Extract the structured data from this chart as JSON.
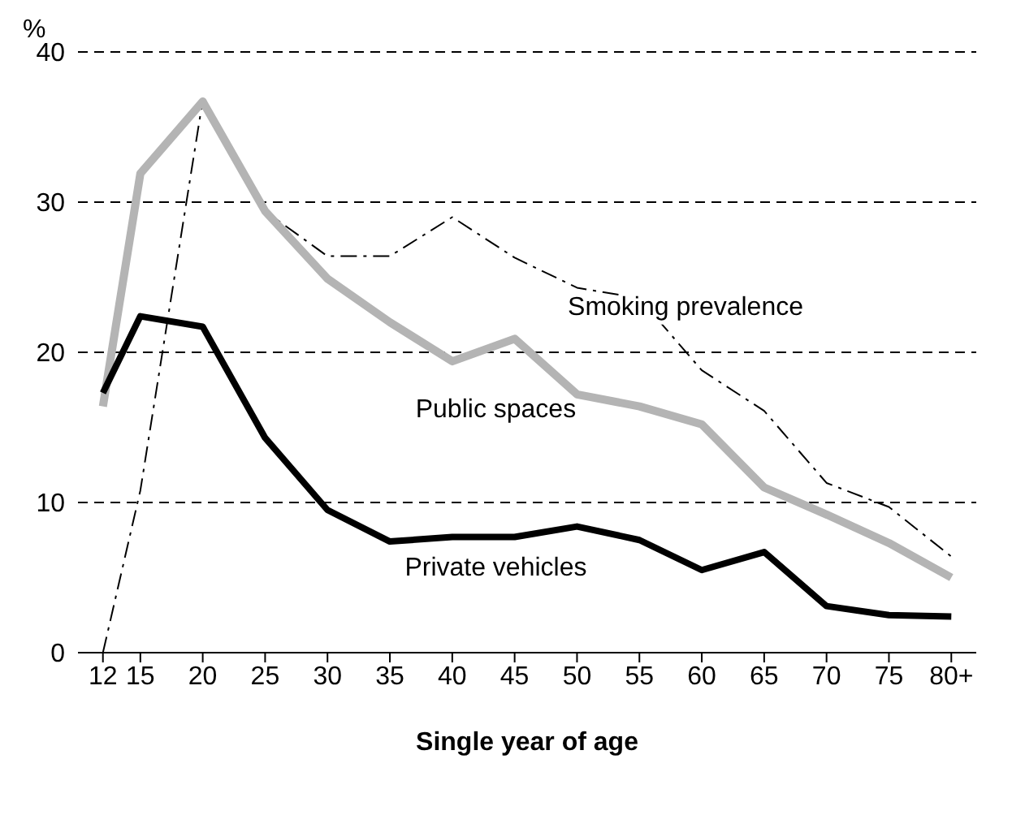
{
  "chart_data": {
    "type": "line",
    "xlabel": "Single year of age",
    "ylabel": "%",
    "x": [
      12,
      15,
      20,
      25,
      30,
      35,
      40,
      45,
      50,
      55,
      60,
      65,
      70,
      75,
      80
    ],
    "xlim": [
      10,
      82
    ],
    "xticks": [
      12,
      15,
      20,
      25,
      30,
      35,
      40,
      45,
      50,
      55,
      60,
      65,
      70,
      75,
      {
        "value": 80,
        "label": "80+"
      }
    ],
    "ylim": [
      0,
      40
    ],
    "yticks": [
      0,
      10,
      20,
      30,
      40
    ],
    "grid": "y",
    "marker": "none",
    "series": [
      {
        "name": "Smoking prevalence",
        "color": "#000000",
        "line_style": "dashed",
        "values": [
          0,
          10.8,
          36.8,
          29.4,
          26.4,
          26.4,
          29,
          26.3,
          24.3,
          23.6,
          18.8,
          16.1,
          11.3,
          9.7,
          6.4
        ]
      },
      {
        "name": "Public spaces",
        "color": "#b4b4b4",
        "values": [
          16.4,
          31.9,
          36.7,
          29.4,
          24.9,
          22,
          19.4,
          20.9,
          17.2,
          16.4,
          15.2,
          11,
          9.2,
          7.3,
          5
        ]
      },
      {
        "name": "Private vehicles",
        "color": "#000000",
        "values": [
          17.3,
          22.4,
          21.7,
          14.3,
          9.5,
          7.4,
          7.7,
          7.7,
          8.4,
          7.5,
          5.5,
          6.7,
          3.1,
          2.5,
          2.4
        ]
      }
    ]
  }
}
